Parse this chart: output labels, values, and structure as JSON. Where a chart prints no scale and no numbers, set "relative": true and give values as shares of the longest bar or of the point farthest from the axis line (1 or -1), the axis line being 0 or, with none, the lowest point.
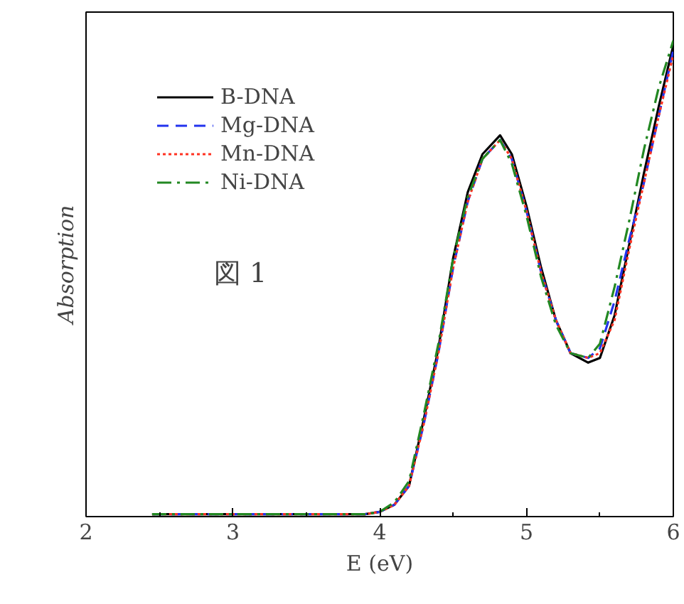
{
  "chart_data": {
    "type": "line",
    "relative": true,
    "xlabel": "E (eV)",
    "ylabel": "Absorption",
    "x": [
      2.45,
      3.0,
      3.5,
      3.9,
      4.0,
      4.1,
      4.2,
      4.3,
      4.4,
      4.5,
      4.6,
      4.7,
      4.82,
      4.9,
      5.0,
      5.1,
      5.2,
      5.3,
      5.42,
      5.5,
      5.6,
      5.7,
      5.8,
      5.9,
      6.0
    ],
    "xlim": [
      2,
      6
    ],
    "xticks": [
      2,
      3,
      4,
      5,
      6
    ],
    "grid": false,
    "legend": "top left",
    "annotations": [
      "図 1"
    ],
    "series": [
      {
        "name": "B-DNA",
        "color": "#000000",
        "line_style": "solid",
        "values": [
          0,
          0,
          0,
          0,
          0.005,
          0.02,
          0.06,
          0.2,
          0.35,
          0.54,
          0.68,
          0.76,
          0.8,
          0.76,
          0.65,
          0.52,
          0.41,
          0.34,
          0.32,
          0.33,
          0.42,
          0.57,
          0.72,
          0.86,
          0.99
        ]
      },
      {
        "name": "Mg-DNA",
        "color": "#2233ee",
        "line_style": "dashed",
        "values": [
          0,
          0,
          0,
          0,
          0.005,
          0.02,
          0.06,
          0.19,
          0.34,
          0.52,
          0.66,
          0.75,
          0.79,
          0.75,
          0.64,
          0.51,
          0.41,
          0.34,
          0.33,
          0.35,
          0.45,
          0.58,
          0.7,
          0.84,
          0.98
        ]
      },
      {
        "name": "Mn-DNA",
        "color": "#ff3322",
        "line_style": "dotted",
        "values": [
          0,
          0,
          0,
          0,
          0.005,
          0.02,
          0.06,
          0.19,
          0.34,
          0.52,
          0.66,
          0.75,
          0.79,
          0.75,
          0.64,
          0.51,
          0.41,
          0.34,
          0.33,
          0.34,
          0.41,
          0.56,
          0.7,
          0.84,
          0.97
        ]
      },
      {
        "name": "Ni-DNA",
        "color": "#228822",
        "line_style": "dashdot",
        "values": [
          0,
          0,
          0,
          0,
          0.005,
          0.025,
          0.07,
          0.21,
          0.36,
          0.54,
          0.67,
          0.75,
          0.79,
          0.74,
          0.63,
          0.5,
          0.4,
          0.34,
          0.33,
          0.36,
          0.48,
          0.62,
          0.77,
          0.9,
          1.0
        ]
      }
    ]
  }
}
